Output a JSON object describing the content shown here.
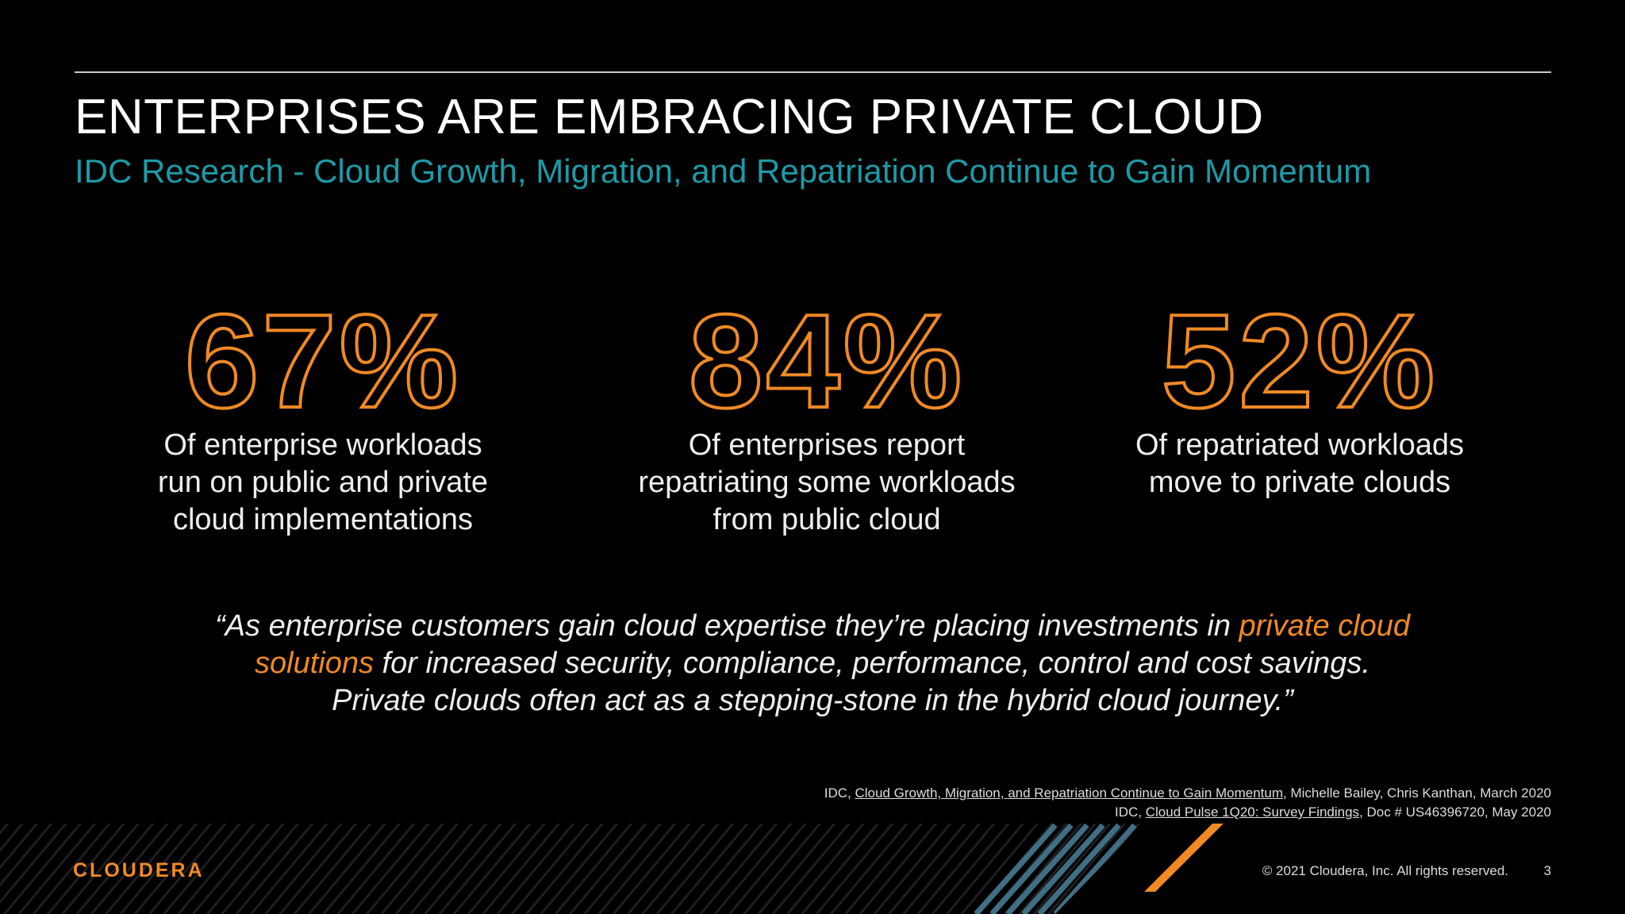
{
  "header": {
    "title": "ENTERPRISES ARE EMBRACING PRIVATE CLOUD",
    "subtitle": "IDC Research -  Cloud Growth, Migration, and Repatriation Continue to Gain Momentum"
  },
  "stats": [
    {
      "value": "67%",
      "lines": [
        "Of enterprise workloads",
        "run on public and private",
        "cloud implementations"
      ]
    },
    {
      "value": "84%",
      "lines": [
        "Of enterprises report",
        "repatriating some workloads",
        "from public cloud"
      ]
    },
    {
      "value": "52%",
      "lines": [
        "Of repatriated workloads",
        "move to private clouds"
      ]
    }
  ],
  "quote": {
    "lines": [
      [
        {
          "text": "“As enterprise customers gain cloud expertise they’re placing investments in "
        },
        {
          "text": "private cloud",
          "highlight": true
        }
      ],
      [
        {
          "text": "solutions",
          "highlight": true
        },
        {
          "text": " for increased security, compliance, performance, control and cost savings."
        }
      ],
      [
        {
          "text": "Private clouds often act as a stepping-stone in the hybrid cloud journey.”"
        }
      ]
    ]
  },
  "footnotes": [
    {
      "prefix": "IDC, ",
      "title": "Cloud Growth, Migration, and Repatriation Continue to Gain Momentum",
      "suffix": ", Michelle Bailey, Chris Kanthan, March 2020"
    },
    {
      "prefix": "IDC, ",
      "title": "Cloud Pulse 1Q20: Survey Findings",
      "suffix": ", Doc # US46396720, May 2020"
    }
  ],
  "footer": {
    "logo": "CLOUDERA",
    "copyright": "© 2021 Cloudera, Inc. All rights reserved.",
    "page": "3"
  }
}
